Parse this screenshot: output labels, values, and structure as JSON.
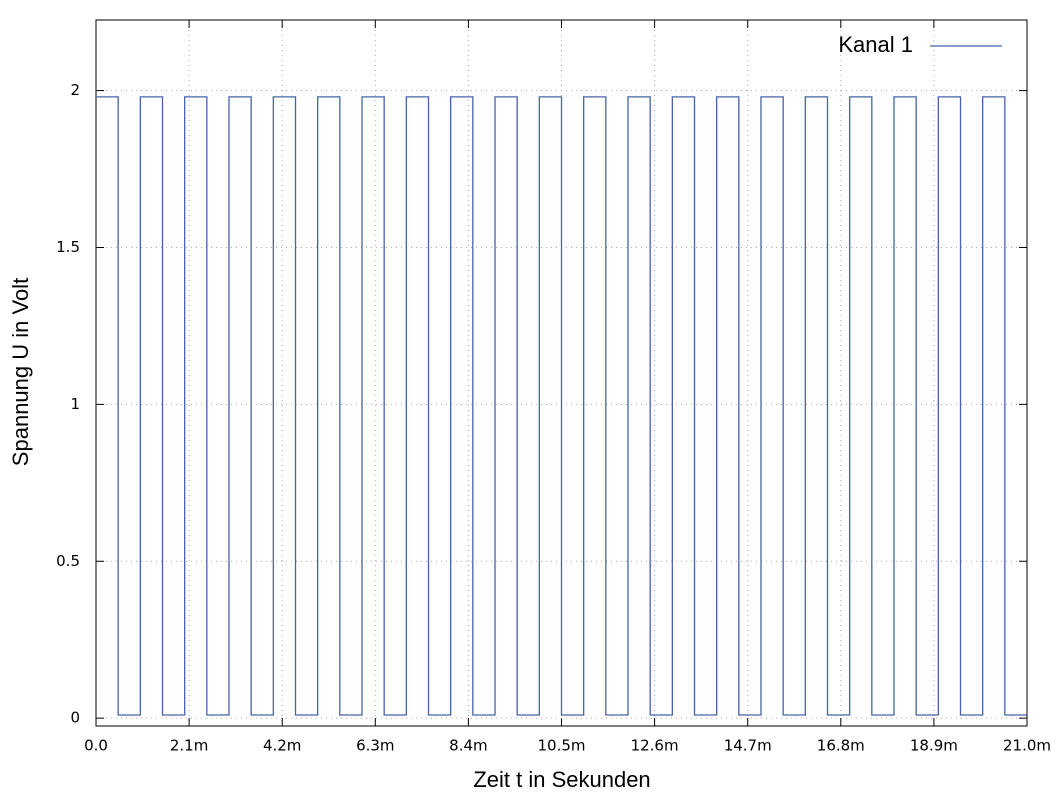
{
  "chart_data": {
    "type": "line",
    "xlabel": "Zeit t in Sekunden",
    "ylabel": "Spannung U in Volt",
    "xlim": [
      0,
      0.021
    ],
    "ylim": [
      -0.025,
      2.225
    ],
    "xticks": [
      {
        "value": 0,
        "label": "0.0"
      },
      {
        "value": 0.0021,
        "label": "2.1m"
      },
      {
        "value": 0.0042,
        "label": "4.2m"
      },
      {
        "value": 0.0063,
        "label": "6.3m"
      },
      {
        "value": 0.0084,
        "label": "8.4m"
      },
      {
        "value": 0.0105,
        "label": "10.5m"
      },
      {
        "value": 0.0126,
        "label": "12.6m"
      },
      {
        "value": 0.0147,
        "label": "14.7m"
      },
      {
        "value": 0.0168,
        "label": "16.8m"
      },
      {
        "value": 0.0189,
        "label": "18.9m"
      },
      {
        "value": 0.021,
        "label": "21.0m"
      }
    ],
    "yticks": [
      0,
      0.5,
      1,
      1.5,
      2
    ],
    "grid": true,
    "legend": "upper right",
    "series": [
      {
        "name": "Kanal 1",
        "color": "#4563a8",
        "x": [
          0,
          0.0005,
          0.0005,
          0.001,
          0.001,
          0.0015,
          0.0015,
          0.002,
          0.002,
          0.0025,
          0.0025,
          0.003,
          0.003,
          0.0035,
          0.0035,
          0.004,
          0.004,
          0.0045,
          0.0045,
          0.005,
          0.005,
          0.0055,
          0.0055,
          0.006,
          0.006,
          0.0065,
          0.0065,
          0.007,
          0.007,
          0.0075,
          0.0075,
          0.008,
          0.008,
          0.0085,
          0.0085,
          0.009,
          0.009,
          0.0095,
          0.0095,
          0.01,
          0.01,
          0.0105,
          0.0105,
          0.011,
          0.011,
          0.0115,
          0.0115,
          0.012,
          0.012,
          0.0125,
          0.0125,
          0.013,
          0.013,
          0.0135,
          0.0135,
          0.014,
          0.014,
          0.0145,
          0.0145,
          0.015,
          0.015,
          0.0155,
          0.0155,
          0.016,
          0.016,
          0.0165,
          0.0165,
          0.017,
          0.017,
          0.0175,
          0.0175,
          0.018,
          0.018,
          0.0185,
          0.0185,
          0.019,
          0.019,
          0.0195,
          0.0195,
          0.02,
          0.02,
          0.0205,
          0.0205,
          0.021
        ],
        "values": [
          1.98,
          1.98,
          0.01,
          0.01,
          1.98,
          1.98,
          0.01,
          0.01,
          1.98,
          1.98,
          0.01,
          0.01,
          1.98,
          1.98,
          0.01,
          0.01,
          1.98,
          1.98,
          0.01,
          0.01,
          1.98,
          1.98,
          0.01,
          0.01,
          1.98,
          1.98,
          0.01,
          0.01,
          1.98,
          1.98,
          0.01,
          0.01,
          1.98,
          1.98,
          0.01,
          0.01,
          1.98,
          1.98,
          0.01,
          0.01,
          1.98,
          1.98,
          0.01,
          0.01,
          1.98,
          1.98,
          0.01,
          0.01,
          1.98,
          1.98,
          0.01,
          0.01,
          1.98,
          1.98,
          0.01,
          0.01,
          1.98,
          1.98,
          0.01,
          0.01,
          1.98,
          1.98,
          0.01,
          0.01,
          1.98,
          1.98,
          0.01,
          0.01,
          1.98,
          1.98,
          0.01,
          0.01,
          1.98,
          1.98,
          0.01,
          0.01,
          1.98,
          1.98,
          0.01,
          0.01,
          1.98,
          1.98,
          0.01,
          0.01
        ]
      }
    ]
  }
}
